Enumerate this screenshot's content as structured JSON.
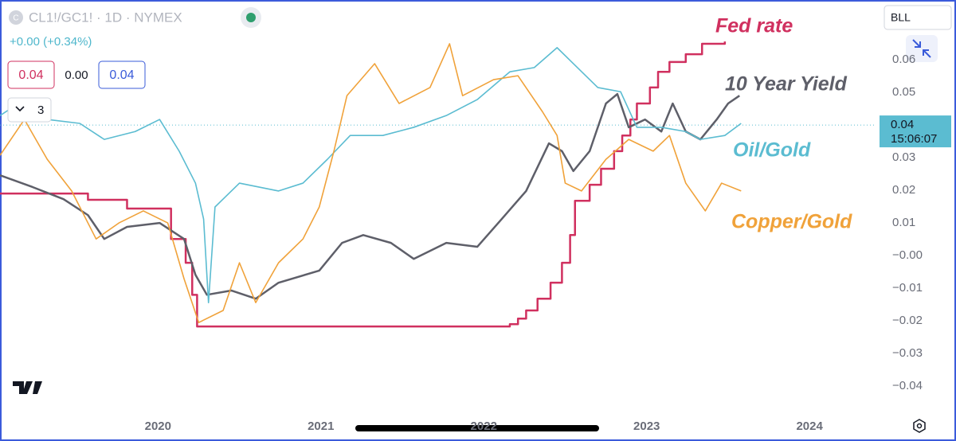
{
  "chart_data": {
    "type": "line",
    "icon_letter": "C",
    "symbol": "CL1!/GC1! · 1D · NYMEX",
    "change": "+0.00 (+0.34%)",
    "legend_values": [
      "0.04",
      "0.00",
      "0.04"
    ],
    "indicator_count": "3",
    "button": "BLL",
    "last_value": 0.04,
    "countdown": "15:06:07",
    "grid": false,
    "xlim": [
      2019.03,
      2024.41
    ],
    "xticks": [
      2020,
      2021,
      2022,
      2023,
      2024
    ],
    "ylim": [
      -0.0485,
      0.0783
    ],
    "yticks": [
      0.06,
      0.05,
      0.04,
      0.03,
      0.02,
      0.01,
      {
        "value": 0,
        "label": "−0.00"
      },
      {
        "value": -0.01,
        "label": "−0.01"
      },
      {
        "value": -0.02,
        "label": "−0.02"
      },
      {
        "value": -0.03,
        "label": "−0.03"
      },
      {
        "value": -0.04,
        "label": "−0.04"
      }
    ],
    "series": [
      {
        "name": "Fed rate",
        "color": "#d0305f",
        "step": true,
        "x": [
          2019.03,
          2019.57,
          2019.81,
          2020.08,
          2020.17,
          2020.21,
          2020.24,
          2022.16,
          2022.21,
          2022.26,
          2022.33,
          2022.41,
          2022.48,
          2022.53,
          2022.56,
          2022.65,
          2022.72,
          2022.8,
          2022.85,
          2022.9,
          2022.94,
          2023.02,
          2023.07,
          2023.14,
          2023.24,
          2023.34,
          2023.48
        ],
        "values": [
          0.019,
          0.0171,
          0.0144,
          0.0051,
          -0.0022,
          -0.012,
          -0.0217,
          -0.021,
          -0.0193,
          -0.0168,
          -0.0132,
          -0.0083,
          -0.0022,
          0.0063,
          0.0168,
          0.0217,
          0.0266,
          0.032,
          0.0368,
          0.0417,
          0.0466,
          0.0515,
          0.0563,
          0.0593,
          0.0617,
          0.0649,
          0.0656
        ]
      },
      {
        "name": "10 Year Yield",
        "color": "#5e5f69",
        "x": [
          2019.03,
          2019.23,
          2019.42,
          2019.57,
          2019.67,
          2019.81,
          2020.01,
          2020.16,
          2020.23,
          2020.3,
          2020.45,
          2020.6,
          2020.74,
          2020.99,
          2021.13,
          2021.26,
          2021.43,
          2021.57,
          2021.77,
          2021.96,
          2022.11,
          2022.26,
          2022.4,
          2022.48,
          2022.55,
          2022.65,
          2022.75,
          2022.82,
          2022.89,
          2022.99,
          2023.09,
          2023.16,
          2023.24,
          2023.33,
          2023.43,
          2023.5,
          2023.57
        ],
        "values": [
          0.0246,
          0.021,
          0.0173,
          0.0124,
          0.0051,
          0.0088,
          0.01,
          0.0051,
          -0.0059,
          -0.012,
          -0.0107,
          -0.0132,
          -0.0083,
          -0.0046,
          0.0039,
          0.0063,
          0.0039,
          -0.001,
          0.0039,
          0.0027,
          0.0112,
          0.0198,
          0.0344,
          0.032,
          0.0259,
          0.032,
          0.0466,
          0.0495,
          0.0393,
          0.0417,
          0.038,
          0.0466,
          0.038,
          0.0356,
          0.0417,
          0.0466,
          0.049
        ]
      },
      {
        "name": "Oil/Gold",
        "color": "#5bbcd1",
        "x": [
          2019.03,
          2019.18,
          2019.32,
          2019.52,
          2019.67,
          2019.86,
          2020.01,
          2020.13,
          2020.23,
          2020.28,
          2020.31,
          2020.35,
          2020.5,
          2020.74,
          2020.89,
          2021.04,
          2021.18,
          2021.38,
          2021.57,
          2021.77,
          2021.96,
          2022.16,
          2022.31,
          2022.45,
          2022.55,
          2022.7,
          2022.84,
          2022.94,
          2023.09,
          2023.24,
          2023.33,
          2023.48,
          2023.58
        ],
        "values": [
          0.0429,
          0.0478,
          0.0417,
          0.0405,
          0.0356,
          0.038,
          0.0417,
          0.032,
          0.0222,
          0.0112,
          -0.0144,
          0.0149,
          0.0222,
          0.0198,
          0.0222,
          0.0295,
          0.0368,
          0.0368,
          0.0393,
          0.0429,
          0.0478,
          0.0563,
          0.0576,
          0.0637,
          0.0588,
          0.0515,
          0.0502,
          0.0393,
          0.0393,
          0.038,
          0.0356,
          0.0368,
          0.0405
        ]
      },
      {
        "name": "Copper/Gold",
        "color": "#f0a23a",
        "x": [
          2019.03,
          2019.18,
          2019.32,
          2019.47,
          2019.62,
          2019.76,
          2019.91,
          2020.06,
          2020.16,
          2020.25,
          2020.4,
          2020.5,
          2020.6,
          2020.74,
          2020.89,
          2020.99,
          2021.08,
          2021.16,
          2021.33,
          2021.48,
          2021.67,
          2021.79,
          2021.87,
          2022.06,
          2022.21,
          2022.36,
          2022.45,
          2022.5,
          2022.6,
          2022.75,
          2022.89,
          2023.04,
          2023.14,
          2023.24,
          2023.36,
          2023.46,
          2023.58
        ],
        "values": [
          0.0307,
          0.0417,
          0.0295,
          0.0198,
          0.0051,
          0.01,
          0.0137,
          0.01,
          -0.0071,
          -0.0205,
          -0.0168,
          -0.0022,
          -0.0144,
          -0.0022,
          0.0051,
          0.0149,
          0.032,
          0.049,
          0.0588,
          0.0466,
          0.0515,
          0.0649,
          0.049,
          0.0539,
          0.0551,
          0.0441,
          0.0368,
          0.0222,
          0.0198,
          0.0295,
          0.0356,
          0.032,
          0.0368,
          0.0222,
          0.0137,
          0.0222,
          0.0198
        ]
      }
    ]
  }
}
